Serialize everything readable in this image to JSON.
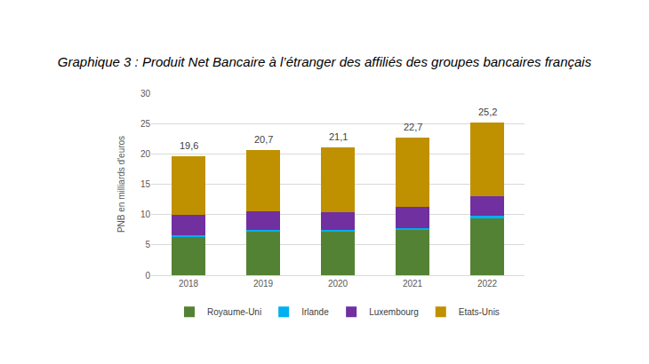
{
  "chart_data": {
    "type": "bar",
    "title": "Graphique 3 : Produit Net Bancaire à l’étranger des affiliés des groupes bancaires français",
    "y_label": "PNB en milliards d'euros",
    "categories": [
      "2018",
      "2019",
      "2020",
      "2021",
      "2022"
    ],
    "series": [
      {
        "name": "Royaume-Uni",
        "color": "#548235",
        "values": [
          6.3,
          7.2,
          7.2,
          7.4,
          9.3
        ]
      },
      {
        "name": "Irlande",
        "color": "#00b0f0",
        "values": [
          0.3,
          0.3,
          0.3,
          0.4,
          0.5
        ]
      },
      {
        "name": "Luxembourg",
        "color": "#7030a0",
        "values": [
          3.3,
          3.0,
          2.9,
          3.5,
          3.2
        ]
      },
      {
        "name": "Etats-Unis",
        "color": "#bf9000",
        "values": [
          9.7,
          10.2,
          10.7,
          11.4,
          12.2
        ]
      }
    ],
    "annotations": [
      {
        "x": "2018",
        "text": "19,6"
      },
      {
        "x": "2019",
        "text": "20,7"
      },
      {
        "x": "2020",
        "text": "21,1"
      },
      {
        "x": "2021",
        "text": "22,7"
      },
      {
        "x": "2022",
        "text": "25,2"
      }
    ],
    "ylim": [
      0,
      30
    ],
    "yticks": [
      0,
      5,
      10,
      15,
      20,
      25,
      30
    ],
    "stacked": true,
    "grid": true,
    "legend": "bottom"
  }
}
